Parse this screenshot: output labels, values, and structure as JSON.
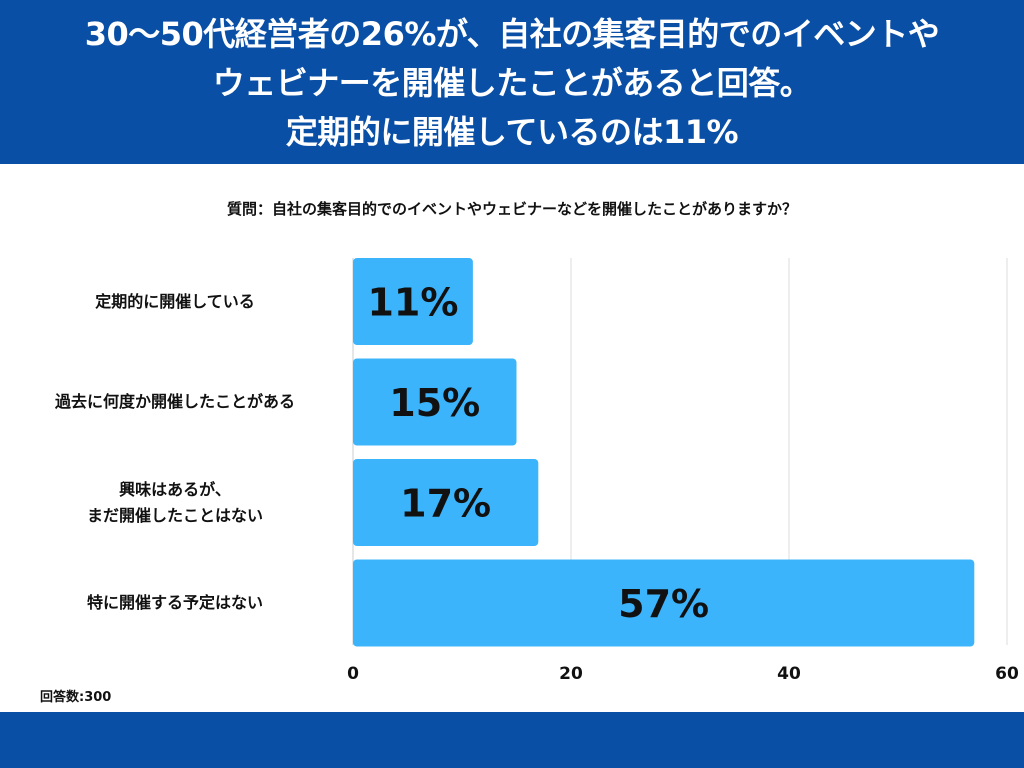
{
  "header": {
    "title_lines": [
      "30〜50代経営者の26%が、自社の集客目的でのイベントや",
      "ウェビナーを開催したことがあると回答。",
      "定期的に開催しているのは11%"
    ]
  },
  "question": "質問：自社の集客目的でのイベントやウェビナーなどを開催したことがありますか？",
  "respondents_note": "回答数:300",
  "colors": {
    "header_bg": "#0a4fa6",
    "bar": "#3bb4fb",
    "grid": "#dddddd",
    "text": "#111111"
  },
  "chart_data": {
    "type": "bar",
    "orientation": "horizontal",
    "categories": [
      "定期的に開催している",
      "過去に何度か開催したことがある",
      "興味はあるが、\nまだ開催したことはない",
      "特に開催する予定はない"
    ],
    "values": [
      11,
      15,
      17,
      57
    ],
    "data_labels": [
      "11%",
      "15%",
      "17%",
      "57%"
    ],
    "xlim": [
      0,
      60
    ],
    "x_ticks": [
      0,
      20,
      40,
      60
    ],
    "grid": true,
    "legend": "none"
  }
}
